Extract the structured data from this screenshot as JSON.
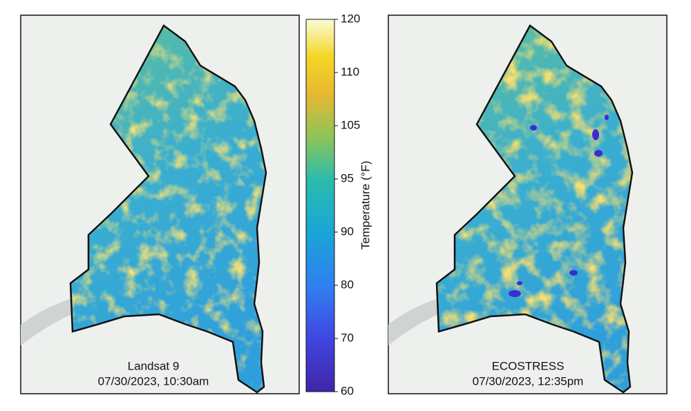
{
  "panels": [
    {
      "title": "Landsat 9",
      "subtitle": "07/30/2023, 10:30am"
    },
    {
      "title": "ECOSTRESS",
      "subtitle": "07/30/2023, 12:35pm"
    }
  ],
  "colorbar": {
    "label": "Temperature (°F)",
    "ticks": [
      60,
      70,
      80,
      90,
      95,
      105,
      110,
      120
    ]
  }
}
